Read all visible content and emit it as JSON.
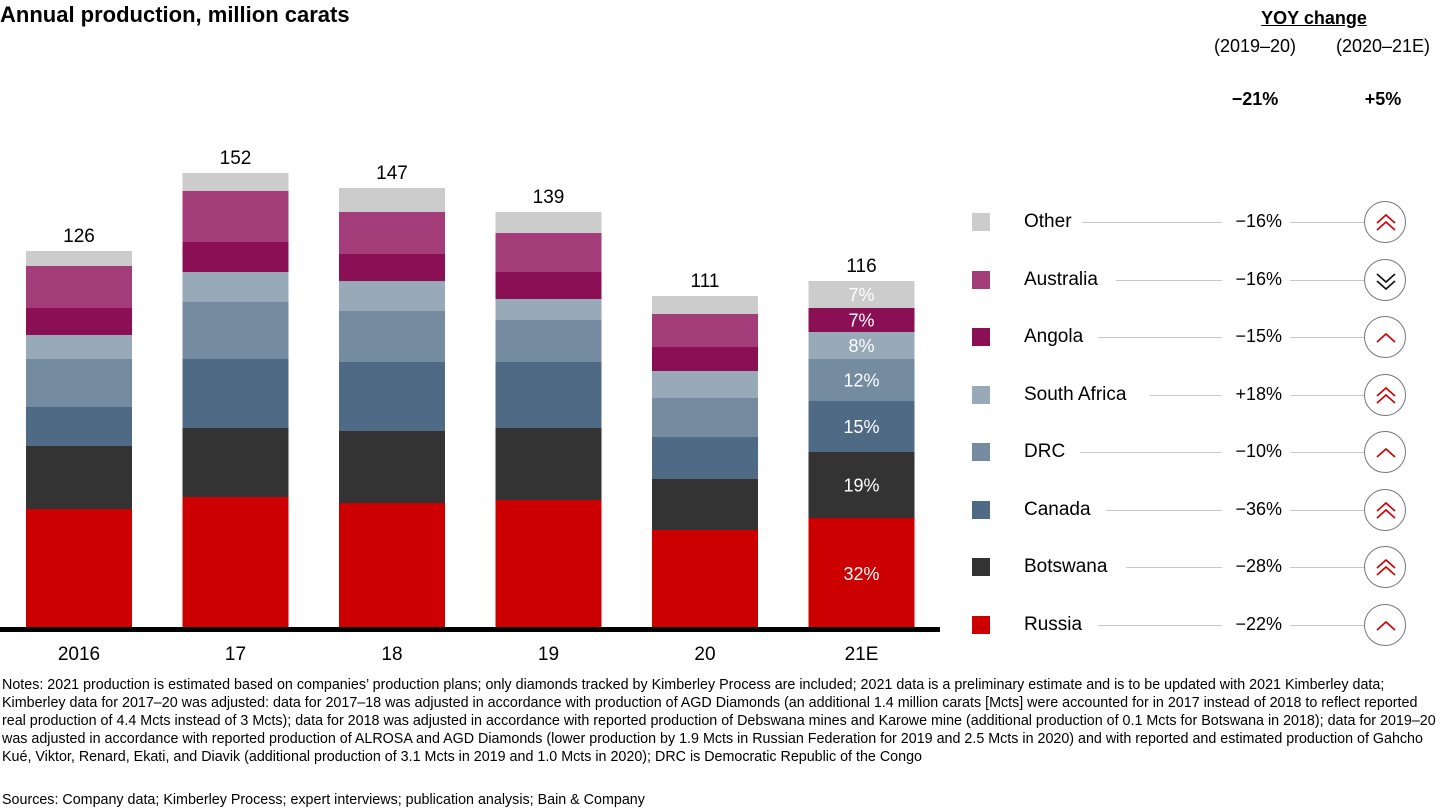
{
  "chart_data": {
    "type": "bar",
    "stacked": true,
    "title": "Annual production, million carats",
    "categories": [
      "2016",
      "17",
      "18",
      "19",
      "20",
      "21E"
    ],
    "totals": [
      "126",
      "152",
      "147",
      "139",
      "111",
      "116"
    ],
    "series": [
      {
        "name": "Russia",
        "color": "#cc0000",
        "values": [
          40,
          44,
          42,
          43,
          33,
          37
        ]
      },
      {
        "name": "Botswana",
        "color": "#333333",
        "values": [
          21,
          23,
          24,
          24,
          17,
          22
        ]
      },
      {
        "name": "Canada",
        "color": "#4f6a85",
        "values": [
          13,
          23,
          23,
          22,
          14,
          17
        ]
      },
      {
        "name": "DRC",
        "color": "#748ba0",
        "values": [
          16,
          19,
          17,
          14,
          13,
          14
        ]
      },
      {
        "name": "South Africa",
        "color": "#98a9b8",
        "values": [
          8,
          10,
          10,
          7,
          9,
          9
        ]
      },
      {
        "name": "Angola",
        "color": "#8b0f54",
        "values": [
          9,
          10,
          9,
          9,
          8,
          8
        ]
      },
      {
        "name": "Australia",
        "color": "#a33d7a",
        "values": [
          14,
          17,
          14,
          13,
          11,
          0
        ]
      },
      {
        "name": "Other",
        "color": "#cccccc",
        "values": [
          5,
          6,
          8,
          7,
          6,
          9
        ]
      }
    ],
    "segment_labels_21E": [
      "32%",
      "19%",
      "15%",
      "12%",
      "8%",
      "7%",
      "",
      "7%"
    ],
    "ylim": [
      0,
      160
    ],
    "grid": false,
    "legend": "right"
  },
  "yoy": {
    "heading": "YOY change",
    "period_1": "(2019–20)",
    "period_2": "(2020–21E)",
    "total_1": "−21%",
    "total_2": "+5%"
  },
  "legend_rows": [
    {
      "name": "Other",
      "color": "#cccccc",
      "change": "−16%",
      "trend": "double-up",
      "trend_icon": "double-chevron-up-icon"
    },
    {
      "name": "Australia",
      "color": "#a33d7a",
      "change": "−16%",
      "trend": "double-down",
      "trend_icon": "double-chevron-down-icon"
    },
    {
      "name": "Angola",
      "color": "#8b0f54",
      "change": "−15%",
      "trend": "up",
      "trend_icon": "chevron-up-icon"
    },
    {
      "name": "South Africa",
      "color": "#98a9b8",
      "change": "+18%",
      "trend": "double-up",
      "trend_icon": "double-chevron-up-icon"
    },
    {
      "name": "DRC",
      "color": "#748ba0",
      "change": "−10%",
      "trend": "up",
      "trend_icon": "chevron-up-icon"
    },
    {
      "name": "Canada",
      "color": "#4f6a85",
      "change": "−36%",
      "trend": "double-up",
      "trend_icon": "double-chevron-up-icon"
    },
    {
      "name": "Botswana",
      "color": "#333333",
      "change": "−28%",
      "trend": "double-up",
      "trend_icon": "double-chevron-up-icon"
    },
    {
      "name": "Russia",
      "color": "#cc0000",
      "change": "−22%",
      "trend": "up",
      "trend_icon": "chevron-up-icon"
    }
  ],
  "notes": "Notes: 2021 production is estimated based on companies’ production plans; only diamonds tracked by Kimberley Process are included; 2021 data is a preliminary estimate and is to be updated with 2021 Kimberley data; Kimberley data for 2017–20 was adjusted: data for 2017–18 was adjusted in accordance with production of AGD Diamonds (an additional 1.4 million carats [Mcts] were accounted for in 2017 instead of 2018 to reflect reported real production of 4.4 Mcts instead of 3 Mcts); data for 2018 was adjusted in accordance with reported production of Debswana mines and Karowe mine (additional production of 0.1 Mcts for Botswana in 2018); data for 2019–20 was adjusted in accordance with reported production of ALROSA and AGD Diamonds (lower production by 1.9 Mcts in Russian Federation for 2019 and 2.5 Mcts in 2020) and with reported and estimated production of Gahcho Kué, Viktor, Renard, Ekati, and Diavik (additional production of 3.1 Mcts in 2019 and 1.0 Mcts in 2020); DRC is Democratic Republic of the Congo",
  "sources": "Sources: Company data; Kimberley Process; expert interviews; publication analysis; Bain & Company",
  "colors": {
    "accent": "#cc0000",
    "axis": "#000000",
    "connector": "#c8c8c8"
  }
}
